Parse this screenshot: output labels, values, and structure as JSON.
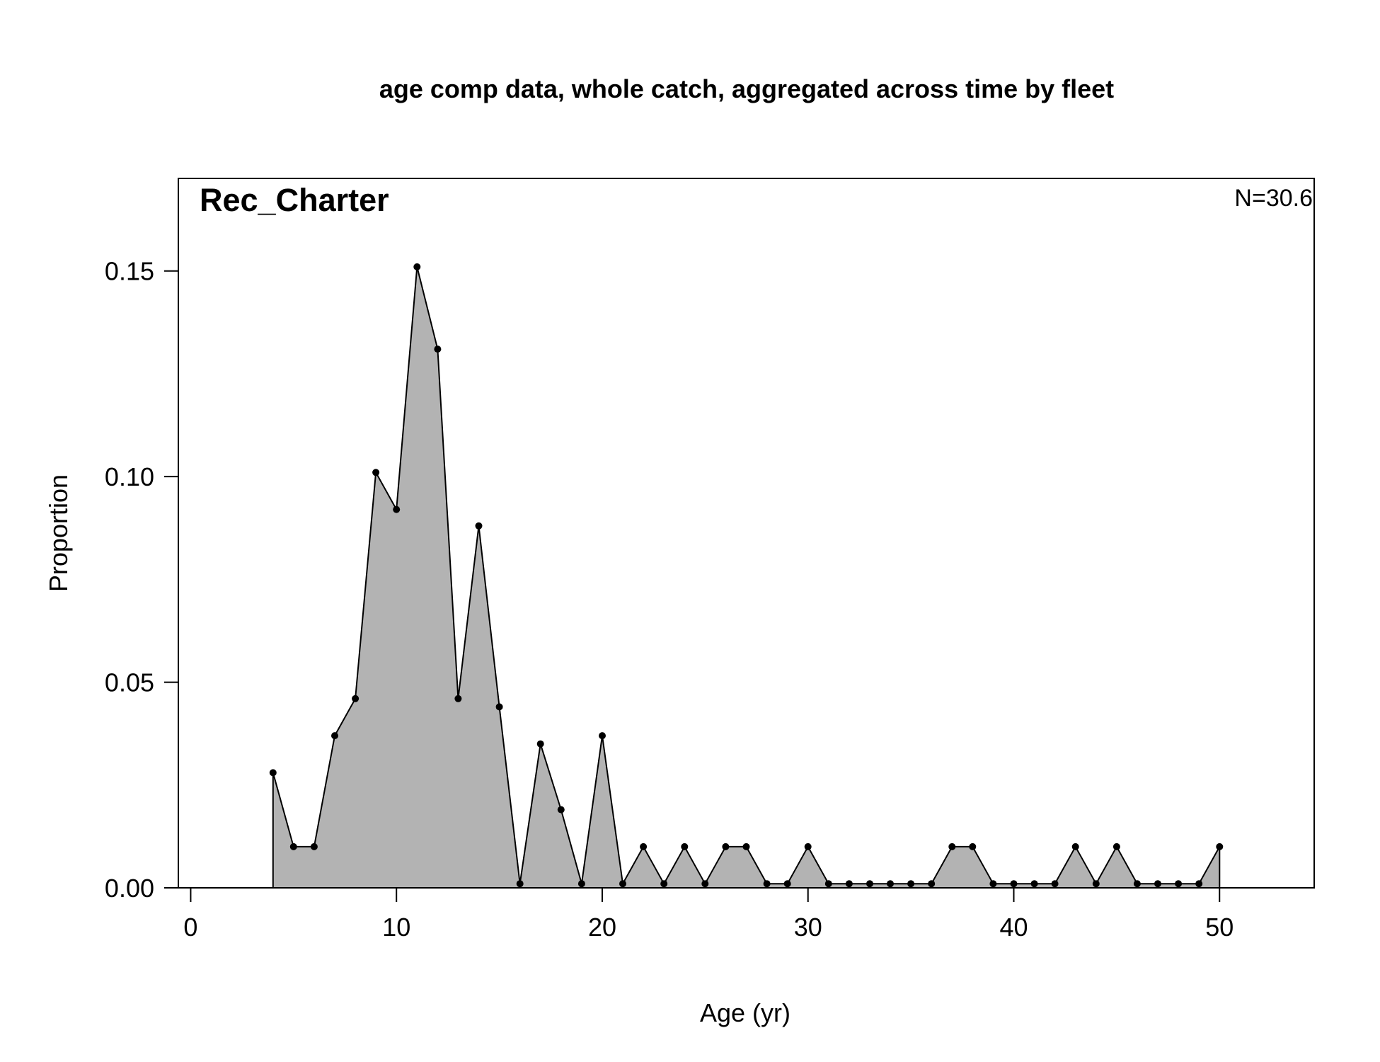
{
  "chart_data": {
    "type": "area",
    "title": "age comp data, whole catch, aggregated across time by fleet",
    "panel_label": "Rec_Charter",
    "n_label": "N=30.6",
    "xlabel": "Age (yr)",
    "ylabel": "Proportion",
    "xlim": [
      -0.6,
      54.6
    ],
    "ylim": [
      0,
      0.1725
    ],
    "x_ticks": [
      0,
      10,
      20,
      30,
      40,
      50
    ],
    "x_tick_labels": [
      "0",
      "10",
      "20",
      "30",
      "40",
      "50"
    ],
    "y_ticks": [
      0,
      0.05,
      0.1,
      0.15
    ],
    "y_tick_labels": [
      "0.00",
      "0.05",
      "0.10",
      "0.15"
    ],
    "grid": false,
    "fill_color": "#b3b3b3",
    "line_color": "#000000",
    "series": [
      {
        "x": [
          4,
          5,
          6,
          7,
          8,
          9,
          10,
          11,
          12,
          13,
          14,
          15,
          16,
          17,
          18,
          19,
          20,
          21,
          22,
          23,
          24,
          25,
          26,
          27,
          28,
          29,
          30,
          31,
          32,
          33,
          34,
          35,
          36,
          37,
          38,
          39,
          40,
          41,
          42,
          43,
          44,
          45,
          46,
          47,
          48,
          49,
          50
        ],
        "values": [
          0.028,
          0.01,
          0.01,
          0.037,
          0.046,
          0.101,
          0.092,
          0.151,
          0.131,
          0.046,
          0.088,
          0.044,
          0.001,
          0.035,
          0.019,
          0.001,
          0.037,
          0.001,
          0.01,
          0.001,
          0.01,
          0.001,
          0.01,
          0.01,
          0.001,
          0.001,
          0.01,
          0.001,
          0.001,
          0.001,
          0.001,
          0.001,
          0.001,
          0.01,
          0.01,
          0.001,
          0.001,
          0.001,
          0.001,
          0.01,
          0.001,
          0.01,
          0.001,
          0.001,
          0.001,
          0.001,
          0.01
        ]
      }
    ]
  }
}
